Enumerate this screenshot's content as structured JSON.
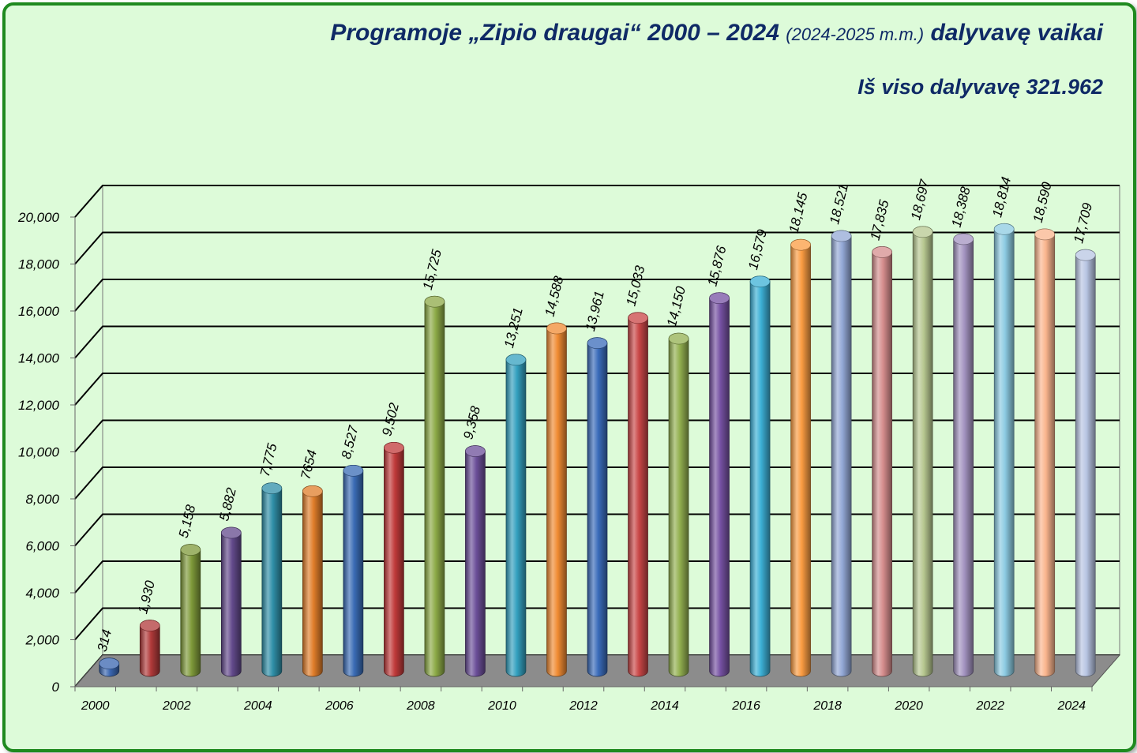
{
  "header": {
    "title_main": "Programoje „Zipio draugai“ 2000 – 2024",
    "title_period": "(2024-2025 m.m.)",
    "title_end": "dalyvavę vaikai",
    "subtitle": "Iš viso dalyvavę 321.962"
  },
  "chart_data": {
    "type": "bar",
    "title": "Programoje „Zipio draugai“ 2000 – 2024 (2024-2025 m.m.) dalyvavę vaikai",
    "subtitle": "Iš viso dalyvavę 321.962",
    "categories": [
      "2000",
      "2001",
      "2002",
      "2003",
      "2004",
      "2005",
      "2006",
      "2007",
      "2008",
      "2009",
      "2010",
      "2011",
      "2012",
      "2013",
      "2014",
      "2015",
      "2016",
      "2017",
      "2018",
      "2019",
      "2020",
      "2021",
      "2022",
      "2023",
      "2024"
    ],
    "x_tick_labels": [
      "2000",
      "",
      "2002",
      "",
      "2004",
      "",
      "2006",
      "",
      "2008",
      "",
      "2010",
      "",
      "2012",
      "",
      "2014",
      "",
      "2016",
      "",
      "2018",
      "",
      "2020",
      "",
      "2022",
      "",
      "2024"
    ],
    "values": [
      314,
      1930,
      5158,
      5882,
      7775,
      7654,
      8527,
      9502,
      15725,
      9358,
      13251,
      14588,
      13961,
      15033,
      14150,
      15876,
      16579,
      18145,
      18521,
      17835,
      18697,
      18388,
      18814,
      18590,
      17709
    ],
    "data_labels": [
      "314",
      "1,930",
      "5,158",
      "5,882",
      "7,775",
      "7654",
      "8,527",
      "9,502",
      "15,725",
      "9,358",
      "13,251",
      "14,588",
      "13,961",
      "15,033",
      "14,150",
      "15,876",
      "16,579",
      "18,145",
      "18,521",
      "17,835",
      "18,697",
      "18,388",
      "18,814",
      "18,590",
      "17,709"
    ],
    "y_ticks": [
      0,
      2000,
      4000,
      6000,
      8000,
      10000,
      12000,
      14000,
      16000,
      18000,
      20000
    ],
    "y_tick_labels": [
      "0",
      "2,000",
      "4,000",
      "6,000",
      "8,000",
      "10,000",
      "12,000",
      "14,000",
      "16,000",
      "18,000",
      "20,000"
    ],
    "ylim": [
      0,
      20000
    ],
    "grid": true,
    "style": "3d-cylinder",
    "colors": [
      "#3a66b0",
      "#b13a3a",
      "#7f9a3a",
      "#634a8c",
      "#2f8fa8",
      "#e07d2a",
      "#3a6cb5",
      "#c03a3a",
      "#8daa47",
      "#6c4f99",
      "#33a0bf",
      "#f08b33",
      "#3a6bba",
      "#c94646",
      "#93b050",
      "#7651a3",
      "#3cb0d6",
      "#fb9c42",
      "#93a8d6",
      "#d68d8d",
      "#b7c890",
      "#a393c0",
      "#8ccbe2",
      "#fab58e",
      "#b8c5e3"
    ],
    "floor_color": "#8c8c8c",
    "bg_color": "#ddfbd9",
    "text_color": "#0f2a66"
  }
}
